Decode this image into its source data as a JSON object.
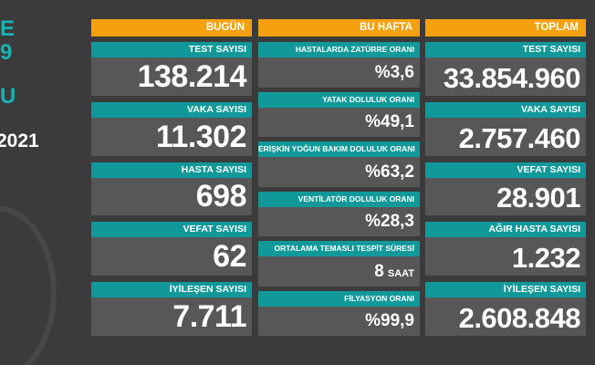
{
  "side": {
    "lines": [
      "E",
      "9",
      "U",
      "2021"
    ]
  },
  "columns": [
    {
      "header": "BUGÜN",
      "rows": [
        {
          "label": "TEST SAYISI",
          "value": "138.214"
        },
        {
          "label": "VAKA SAYISI",
          "value": "11.302"
        },
        {
          "label": "HASTA SAYISI",
          "value": "698"
        },
        {
          "label": "VEFAT SAYISI",
          "value": "62"
        },
        {
          "label": "İYİLEŞEN SAYISI",
          "value": "7.711"
        }
      ]
    },
    {
      "header": "BU HAFTA",
      "rows": [
        {
          "label": "HASTALARDA ZATÜRRE ORANI",
          "value": "%3,6"
        },
        {
          "label": "YATAK DOLULUK ORANI",
          "value": "%49,1"
        },
        {
          "label": "ERİŞKİN YOĞUN BAKIM DOLULUK ORANI",
          "value": "%63,2"
        },
        {
          "label": "VENTİLATÖR DOLULUK ORANI",
          "value": "%28,3"
        },
        {
          "label": "ORTALAMA TEMASLI TESPİT SÜRESİ",
          "value": "8",
          "unit": "SAAT"
        },
        {
          "label": "FİLYASYON ORANI",
          "value": "%99,9"
        }
      ]
    },
    {
      "header": "TOPLAM",
      "rows": [
        {
          "label": "TEST SAYISI",
          "value": "33.854.960"
        },
        {
          "label": "VAKA SAYISI",
          "value": "2.757.460"
        },
        {
          "label": "VEFAT SAYISI",
          "value": "28.901"
        },
        {
          "label": "AĞIR HASTA SAYISI",
          "value": "1.232"
        },
        {
          "label": "İYİLEŞEN SAYISI",
          "value": "2.608.848"
        }
      ]
    }
  ]
}
